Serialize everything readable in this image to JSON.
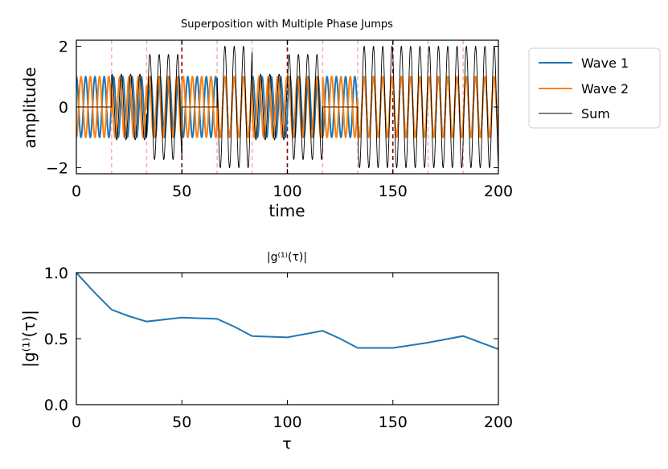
{
  "chart_data": [
    {
      "type": "line",
      "title": "Superposition with Multiple Phase Jumps",
      "xlabel": "time",
      "ylabel": "amplitude",
      "xlim": [
        0,
        200
      ],
      "ylim": [
        -2.2,
        2.2
      ],
      "xticks": [
        0,
        50,
        100,
        150,
        200
      ],
      "yticks": [
        -2,
        0,
        2
      ],
      "grid": false,
      "legend_position": "outside-right",
      "phase_jump_times": [
        16.7,
        33.3,
        50,
        66.7,
        83.3,
        100,
        116.7,
        133.3,
        150,
        166.7,
        183.3
      ],
      "jump_line_colors": [
        "#ffb0b0",
        "#ffb0b0",
        "#8b0000",
        "#ffb0b0",
        "#ffb0b0",
        "#8b0000",
        "#ffb0b0",
        "#ffb0b0",
        "#8b0000",
        "#ffb0b0",
        "#ffb0b0"
      ],
      "wave_period": 4.4,
      "wave2_phase_by_segment": [
        3.14,
        2.0,
        1.05,
        3.14,
        0.0,
        2.0,
        1.05,
        3.14,
        0.0,
        0.0,
        0.0,
        0.0
      ],
      "series": [
        {
          "name": "Wave 1",
          "color": "#1f77b4",
          "amplitude": 1.0
        },
        {
          "name": "Wave 2",
          "color": "#ff7f0e",
          "amplitude": 1.0
        },
        {
          "name": "Sum",
          "color": "#000000",
          "amplitude": 2.0
        }
      ]
    },
    {
      "type": "line",
      "title": "|g⁽¹⁾(τ)|",
      "xlabel": "τ",
      "ylabel": "|g⁽¹⁾(τ)|",
      "xlim": [
        0,
        200
      ],
      "ylim": [
        0,
        1.0
      ],
      "xticks": [
        0,
        50,
        100,
        150,
        200
      ],
      "yticks": [
        0.0,
        0.5,
        1.0
      ],
      "ytick_labels": [
        "0.0",
        "0.5",
        "1.0"
      ],
      "grid": false,
      "series": [
        {
          "color": "#1f77b4",
          "x": [
            0,
            8,
            16.7,
            25,
            33.3,
            50,
            66.7,
            75,
            83.3,
            100,
            116.7,
            125,
            133.3,
            150,
            166.7,
            183.3,
            200
          ],
          "y": [
            1.0,
            0.86,
            0.72,
            0.67,
            0.63,
            0.66,
            0.65,
            0.59,
            0.52,
            0.51,
            0.56,
            0.5,
            0.43,
            0.43,
            0.47,
            0.52,
            0.42
          ]
        }
      ]
    }
  ]
}
